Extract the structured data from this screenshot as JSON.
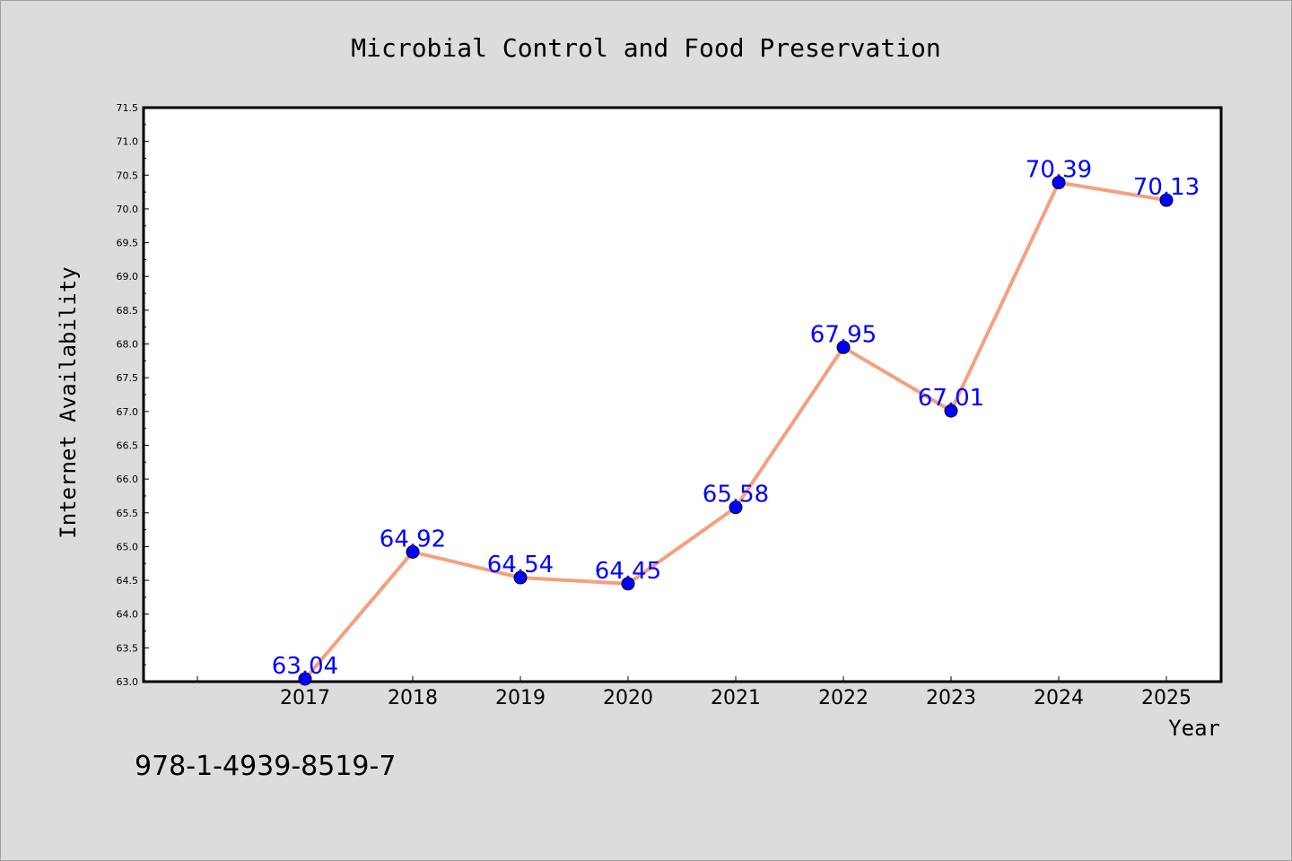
{
  "chart_data": {
    "type": "line",
    "title": "Microbial Control and Food Preservation",
    "xlabel": "Year",
    "ylabel": "Internet Availability",
    "categories": [
      "2017",
      "2018",
      "2019",
      "2020",
      "2021",
      "2022",
      "2023",
      "2024",
      "2025"
    ],
    "values": [
      63.04,
      64.92,
      64.54,
      64.45,
      65.58,
      67.95,
      67.01,
      70.39,
      70.13
    ],
    "data_labels": [
      "63.04",
      "64.92",
      "64.54",
      "64.45",
      "65.58",
      "67.95",
      "67.01",
      "70.39",
      "70.13"
    ],
    "ylim": [
      63.0,
      71.5
    ],
    "yticks": [
      "63.0",
      "63.5",
      "64.0",
      "64.5",
      "65.0",
      "65.5",
      "66.0",
      "66.5",
      "67.0",
      "67.5",
      "68.0",
      "68.5",
      "69.0",
      "69.5",
      "70.0",
      "70.5",
      "71.0",
      "71.5"
    ],
    "grid": false,
    "line_color": "#f4a07e",
    "marker_color": "#0000ff",
    "label_color": "#0000ff",
    "plot_background": "#ffffff",
    "page_background": "#dcdcdc"
  },
  "footer_text": "978-1-4939-8519-7"
}
